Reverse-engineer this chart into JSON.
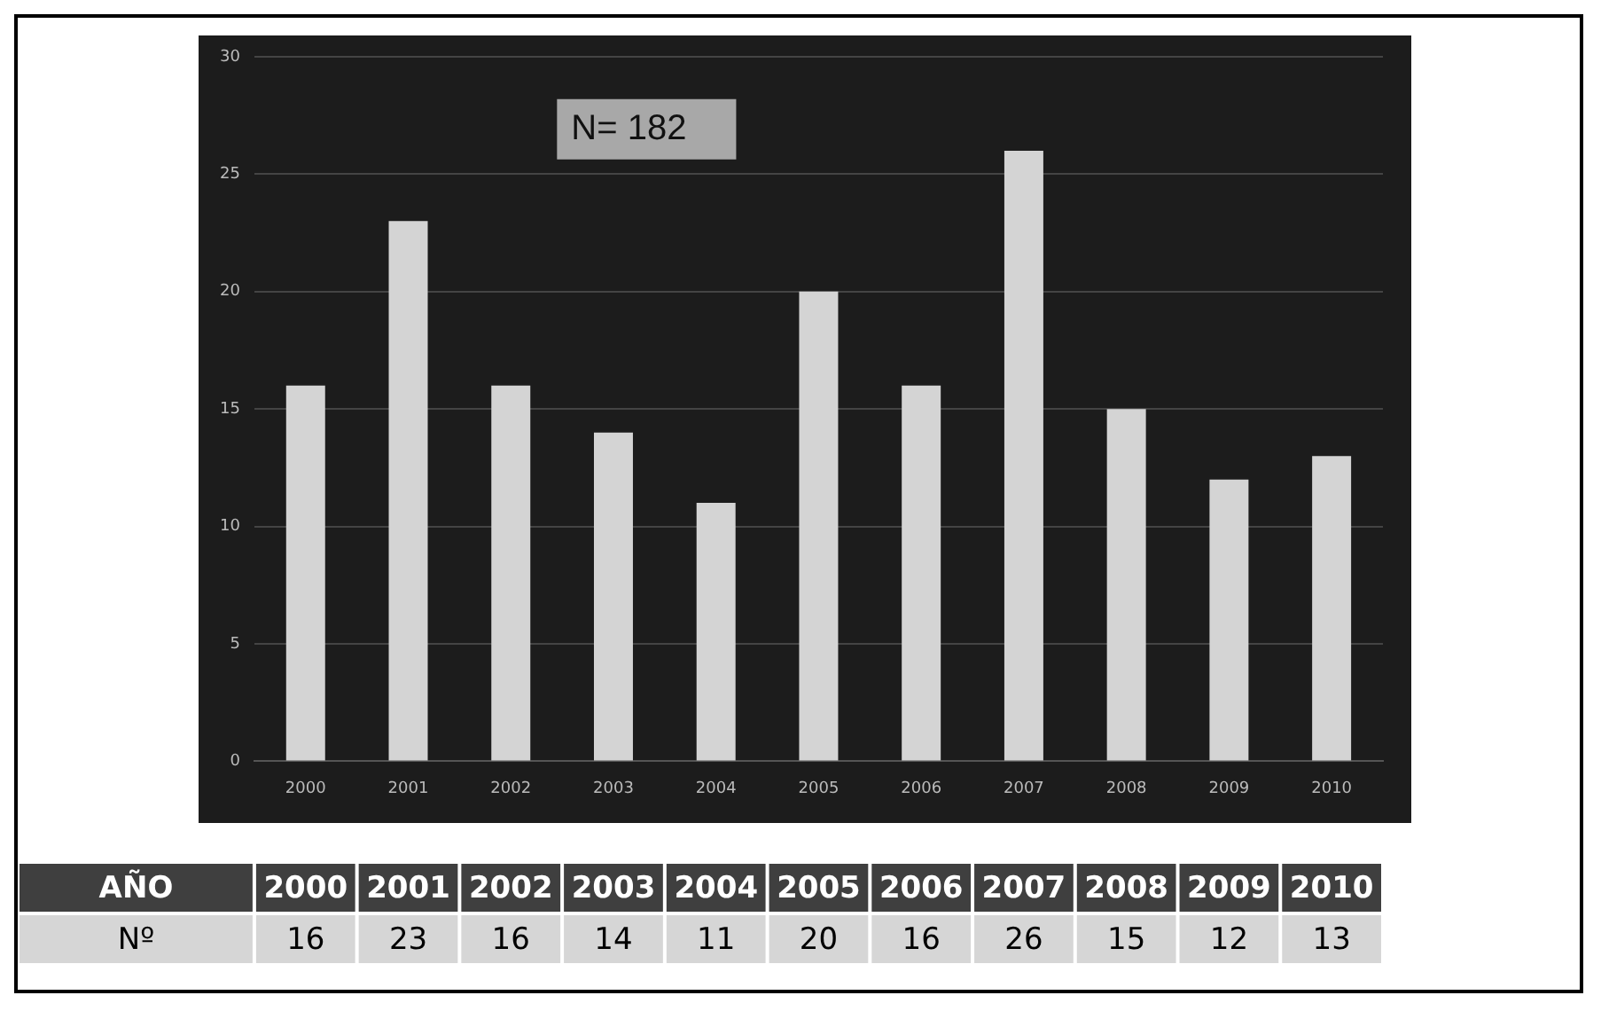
{
  "chart_data": {
    "type": "bar",
    "categories": [
      "2000",
      "2001",
      "2002",
      "2003",
      "2004",
      "2005",
      "2006",
      "2007",
      "2008",
      "2009",
      "2010"
    ],
    "values": [
      16,
      23,
      16,
      14,
      11,
      20,
      16,
      26,
      15,
      12,
      13
    ],
    "color": "#d4d4d4",
    "ylim": [
      0,
      30
    ],
    "yticks": [
      0,
      5,
      10,
      15,
      20,
      25,
      30
    ],
    "grid": "y",
    "legend": false,
    "data_labels": true,
    "annotations": [
      "N= 182",
      "AÑO",
      "Nº"
    ]
  }
}
